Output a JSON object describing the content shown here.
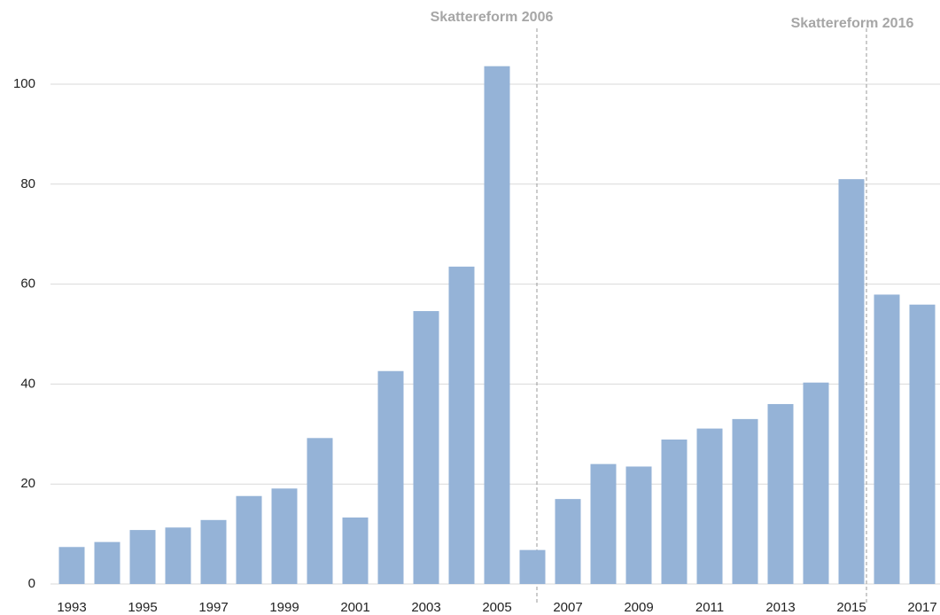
{
  "chart_data": {
    "type": "bar",
    "categories": [
      "1993",
      null,
      "1995",
      null,
      "1997",
      null,
      "1999",
      null,
      "2001",
      null,
      "2003",
      null,
      "2005",
      null,
      "2007",
      null,
      "2009",
      null,
      "2011",
      null,
      "2013",
      null,
      "2015",
      null,
      "2017"
    ],
    "values": [
      7.4,
      8.4,
      10.8,
      11.3,
      12.8,
      17.6,
      19.1,
      29.2,
      13.3,
      42.6,
      54.6,
      63.5,
      103.6,
      6.8,
      17,
      24,
      23.5,
      28.9,
      31.1,
      33,
      36,
      40.3,
      81,
      57.9,
      55.9
    ],
    "color": "#95b3d7",
    "ylim": [
      0,
      110
    ],
    "yticks": [
      0,
      20,
      40,
      60,
      80,
      100
    ],
    "grid": true,
    "annotations": [
      "Skattereform 2006",
      "Skattereform 2016"
    ]
  }
}
